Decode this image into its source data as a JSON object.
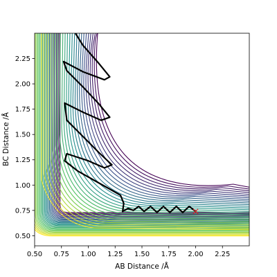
{
  "chart_data": {
    "type": "contour",
    "xlabel": "AB Distance /Å",
    "ylabel": "BC Distance /Å",
    "xlim": [
      0.5,
      2.5
    ],
    "ylim": [
      0.4,
      2.5
    ],
    "xticks": [
      0.5,
      0.75,
      1.0,
      1.25,
      1.5,
      1.75,
      2.0,
      2.25
    ],
    "xtick_labels": [
      "0.50",
      "0.75",
      "1.00",
      "1.25",
      "1.50",
      "1.75",
      "2.00",
      "2.25"
    ],
    "yticks": [
      0.5,
      0.75,
      1.0,
      1.25,
      1.5,
      1.75,
      2.0,
      2.25
    ],
    "ytick_labels": [
      "0.50",
      "0.75",
      "1.00",
      "1.25",
      "1.50",
      "1.75",
      "2.00",
      "2.25"
    ],
    "grid": false,
    "colormap": "viridis",
    "colormap_stops": [
      "#440154",
      "#3b528b",
      "#21918c",
      "#5ec962",
      "#fde725"
    ],
    "trajectory_color": "#000000",
    "start_marker": {
      "x": 2.0,
      "y": 0.74,
      "symbol": "x",
      "color": "#d62728"
    },
    "trajectory": [
      [
        2.0,
        0.74
      ],
      [
        1.94,
        0.79
      ],
      [
        1.88,
        0.73
      ],
      [
        1.82,
        0.79
      ],
      [
        1.76,
        0.73
      ],
      [
        1.7,
        0.79
      ],
      [
        1.64,
        0.73
      ],
      [
        1.58,
        0.79
      ],
      [
        1.52,
        0.74
      ],
      [
        1.47,
        0.79
      ],
      [
        1.42,
        0.75
      ],
      [
        1.37,
        0.77
      ],
      [
        1.32,
        0.74
      ],
      [
        1.33,
        0.82
      ],
      [
        1.3,
        0.9
      ],
      [
        1.2,
        0.96
      ],
      [
        1.05,
        1.05
      ],
      [
        0.9,
        1.14
      ],
      [
        0.78,
        1.24
      ],
      [
        0.8,
        1.31
      ],
      [
        1.0,
        1.24
      ],
      [
        1.15,
        1.17
      ],
      [
        1.22,
        1.2
      ],
      [
        1.1,
        1.32
      ],
      [
        0.95,
        1.48
      ],
      [
        0.8,
        1.64
      ],
      [
        0.78,
        1.81
      ],
      [
        0.95,
        1.72
      ],
      [
        1.12,
        1.64
      ],
      [
        1.2,
        1.67
      ],
      [
        1.1,
        1.8
      ],
      [
        0.95,
        1.97
      ],
      [
        0.8,
        2.13
      ],
      [
        0.77,
        2.22
      ],
      [
        0.95,
        2.12
      ],
      [
        1.15,
        2.04
      ],
      [
        1.2,
        2.07
      ],
      [
        1.1,
        2.2
      ],
      [
        0.95,
        2.38
      ],
      [
        0.88,
        2.5
      ]
    ]
  }
}
